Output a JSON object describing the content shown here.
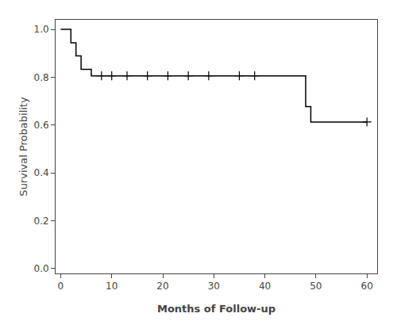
{
  "chart_data": {
    "type": "line",
    "xlabel": "Months of Follow-up",
    "ylabel": "Survival Probability",
    "xlim": [
      -1,
      62
    ],
    "ylim": [
      -0.02,
      1.04
    ],
    "xticks": [
      0,
      10,
      20,
      30,
      40,
      50,
      60
    ],
    "yticks": [
      {
        "value": 0.0,
        "label": "0.0"
      },
      0.2,
      0.4,
      0.6,
      0.8,
      {
        "value": 1.0,
        "label": "1.0"
      }
    ],
    "grid": false,
    "series": [
      {
        "type": "line",
        "line_style": "solid",
        "color": "#000000",
        "x": [
          0,
          2,
          2,
          3,
          3,
          4,
          4,
          6,
          6,
          48,
          48,
          49,
          49,
          60
        ],
        "values": [
          1.0,
          1.0,
          0.944,
          0.944,
          0.889,
          0.889,
          0.833,
          0.833,
          0.806,
          0.806,
          0.677,
          0.677,
          0.613,
          0.613
        ]
      },
      {
        "type": "scatter",
        "marker": "+",
        "color": "#000000",
        "x": [
          8,
          10,
          13,
          17,
          21,
          25,
          29,
          35,
          38,
          60
        ],
        "values": [
          0.806,
          0.806,
          0.806,
          0.806,
          0.806,
          0.806,
          0.806,
          0.806,
          0.806,
          0.613
        ]
      }
    ]
  }
}
